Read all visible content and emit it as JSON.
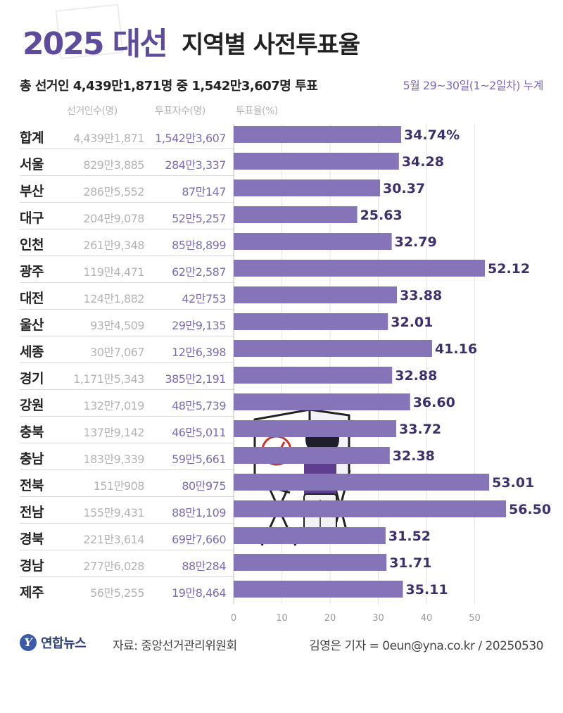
{
  "header": {
    "title_year": "2025 대선",
    "title_rest": "지역별 사전투표율",
    "summary": "총 선거인 4,439만1,871명 중 1,542만3,607명 투표",
    "period": "5월 29~30일(1~2일차) 누계"
  },
  "columns": {
    "electors": "선거인수(명)",
    "voters": "투표자수(명)",
    "rate": "투표율(%)"
  },
  "chart_data": {
    "type": "bar",
    "orientation": "horizontal",
    "categories": [
      "합계",
      "서울",
      "부산",
      "대구",
      "인천",
      "광주",
      "대전",
      "울산",
      "세종",
      "경기",
      "강원",
      "충북",
      "충남",
      "전북",
      "전남",
      "경북",
      "경남",
      "제주"
    ],
    "values": [
      34.74,
      34.28,
      30.37,
      25.63,
      32.79,
      52.12,
      33.88,
      32.01,
      41.16,
      32.88,
      36.6,
      33.72,
      32.38,
      53.01,
      56.5,
      31.52,
      31.71,
      35.11
    ],
    "value_labels": [
      "34.74%",
      "34.28",
      "30.37",
      "25.63",
      "32.79",
      "52.12",
      "33.88",
      "32.01",
      "41.16",
      "32.88",
      "36.60",
      "33.72",
      "32.38",
      "53.01",
      "56.50",
      "31.52",
      "31.71",
      "35.11"
    ],
    "x_ticks": [
      "0",
      "10",
      "20",
      "30",
      "40",
      "50"
    ],
    "xlim": [
      0,
      58
    ],
    "grid": true,
    "bar_color": "#8574b8"
  },
  "rows": [
    {
      "region": "합계",
      "electors": "4,439만1,871",
      "voters": "1,542만3,607"
    },
    {
      "region": "서울",
      "electors": "829만3,885",
      "voters": "284만3,337"
    },
    {
      "region": "부산",
      "electors": "286만5,552",
      "voters": "87만147"
    },
    {
      "region": "대구",
      "electors": "204만9,078",
      "voters": "52만5,257"
    },
    {
      "region": "인천",
      "electors": "261만9,348",
      "voters": "85만8,899"
    },
    {
      "region": "광주",
      "electors": "119만4,471",
      "voters": "62만2,587"
    },
    {
      "region": "대전",
      "electors": "124만1,882",
      "voters": "42만753"
    },
    {
      "region": "울산",
      "electors": "93만4,509",
      "voters": "29만9,135"
    },
    {
      "region": "세종",
      "electors": "30만7,067",
      "voters": "12만6,398"
    },
    {
      "region": "경기",
      "electors": "1,171만5,343",
      "voters": "385만2,191"
    },
    {
      "region": "강원",
      "electors": "132만7,019",
      "voters": "48만5,739"
    },
    {
      "region": "충북",
      "electors": "137만9,142",
      "voters": "46만5,011"
    },
    {
      "region": "충남",
      "electors": "183만9,339",
      "voters": "59만5,661"
    },
    {
      "region": "전북",
      "electors": "151만908",
      "voters": "80만975"
    },
    {
      "region": "전남",
      "electors": "155만9,431",
      "voters": "88만1,109"
    },
    {
      "region": "경북",
      "electors": "221만3,614",
      "voters": "69만7,660"
    },
    {
      "region": "경남",
      "electors": "277만6,028",
      "voters": "88만284"
    },
    {
      "region": "제주",
      "electors": "56만5,255",
      "voters": "19만8,464"
    }
  ],
  "footer": {
    "logo_mark": "Y",
    "logo_text": "연합뉴스",
    "source": "자료: 중앙선거관리위원회",
    "credit": "김영은 기자 = 0eun@yna.co.kr / 20250530"
  },
  "illustration": {
    "icon": "voting-booth-icon",
    "accent": "#5e3f8f",
    "ballot_mark_color": "#c0392b"
  }
}
